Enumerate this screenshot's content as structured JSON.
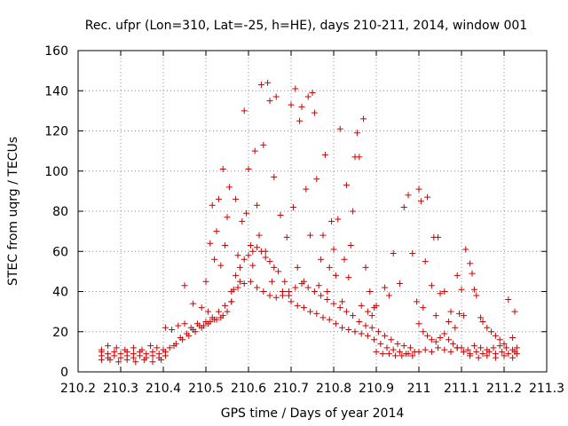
{
  "chart_data": {
    "type": "scatter",
    "title": "Rec. ufpr (Lon=310, Lat=-25, h=HE), days 210-211, 2014, window 001",
    "xlabel": "GPS time / Days of year 2014",
    "ylabel": "STEC from uqrg / TECUs",
    "xlim": [
      210.2,
      211.3
    ],
    "ylim": [
      0,
      160
    ],
    "xticks": [
      210.2,
      210.3,
      210.4,
      210.5,
      210.6,
      210.7,
      210.8,
      210.9,
      211,
      211.1,
      211.2,
      211.3
    ],
    "xtick_labels": [
      "210.2",
      "210.3",
      "210.4",
      "210.5",
      "210.6",
      "210.7",
      "210.8",
      "210.9",
      "211",
      "211.1",
      "211.2",
      "211.3"
    ],
    "yticks": [
      0,
      20,
      40,
      60,
      80,
      100,
      120,
      140,
      160
    ],
    "ytick_labels": [
      "0",
      "20",
      "40",
      "60",
      "80",
      "100",
      "120",
      "140",
      "160"
    ],
    "marker": "+",
    "color": "#cc0000",
    "grid": true,
    "series": [
      {
        "name": "STEC",
        "points": [
          [
            210.255,
            10
          ],
          [
            210.27,
            9
          ],
          [
            210.285,
            10
          ],
          [
            210.3,
            9
          ],
          [
            210.315,
            10
          ],
          [
            210.33,
            9
          ],
          [
            210.345,
            10
          ],
          [
            210.36,
            9
          ],
          [
            210.375,
            10
          ],
          [
            210.39,
            9
          ],
          [
            210.405,
            10
          ],
          [
            210.255,
            8
          ],
          [
            210.27,
            7
          ],
          [
            210.285,
            8
          ],
          [
            210.3,
            7
          ],
          [
            210.315,
            8
          ],
          [
            210.33,
            7
          ],
          [
            210.345,
            8
          ],
          [
            210.36,
            7
          ],
          [
            210.375,
            8
          ],
          [
            210.39,
            7
          ],
          [
            210.405,
            8
          ],
          [
            210.255,
            11
          ],
          [
            210.27,
            13
          ],
          [
            210.29,
            12
          ],
          [
            210.31,
            11
          ],
          [
            210.33,
            12
          ],
          [
            210.35,
            11
          ],
          [
            210.37,
            13
          ],
          [
            210.385,
            12
          ],
          [
            210.4,
            11
          ],
          [
            210.255,
            6
          ],
          [
            210.275,
            6
          ],
          [
            210.295,
            5
          ],
          [
            210.315,
            6
          ],
          [
            210.335,
            5
          ],
          [
            210.355,
            6
          ],
          [
            210.375,
            5
          ],
          [
            210.395,
            6
          ],
          [
            210.405,
            22
          ],
          [
            210.42,
            21
          ],
          [
            210.435,
            23
          ],
          [
            210.45,
            24
          ],
          [
            210.465,
            22
          ],
          [
            210.48,
            24
          ],
          [
            210.495,
            23
          ],
          [
            210.51,
            25
          ],
          [
            210.525,
            26
          ],
          [
            210.54,
            28
          ],
          [
            210.415,
            12
          ],
          [
            210.43,
            14
          ],
          [
            210.445,
            16
          ],
          [
            210.46,
            18
          ],
          [
            210.475,
            20
          ],
          [
            210.49,
            22
          ],
          [
            210.505,
            24
          ],
          [
            210.52,
            26
          ],
          [
            210.535,
            27
          ],
          [
            210.55,
            30
          ],
          [
            210.425,
            13
          ],
          [
            210.44,
            17
          ],
          [
            210.455,
            19
          ],
          [
            210.47,
            21
          ],
          [
            210.485,
            23
          ],
          [
            210.5,
            25
          ],
          [
            210.515,
            27
          ],
          [
            210.53,
            30
          ],
          [
            210.545,
            33
          ],
          [
            210.56,
            35
          ],
          [
            210.45,
            43
          ],
          [
            210.47,
            34
          ],
          [
            210.49,
            32
          ],
          [
            210.505,
            30
          ],
          [
            210.5,
            45
          ],
          [
            210.51,
            64
          ],
          [
            210.515,
            83
          ],
          [
            210.52,
            56
          ],
          [
            210.525,
            70
          ],
          [
            210.53,
            86
          ],
          [
            210.535,
            53
          ],
          [
            210.54,
            101
          ],
          [
            210.545,
            63
          ],
          [
            210.55,
            77
          ],
          [
            210.555,
            92
          ],
          [
            210.56,
            35
          ],
          [
            210.565,
            41
          ],
          [
            210.57,
            86
          ],
          [
            210.575,
            58
          ],
          [
            210.58,
            45
          ],
          [
            210.585,
            75
          ],
          [
            210.59,
            130
          ],
          [
            210.595,
            79
          ],
          [
            210.6,
            101
          ],
          [
            210.605,
            63
          ],
          [
            210.61,
            53
          ],
          [
            210.615,
            110
          ],
          [
            210.62,
            83
          ],
          [
            210.625,
            68
          ],
          [
            210.63,
            143
          ],
          [
            210.635,
            113
          ],
          [
            210.64,
            60
          ],
          [
            210.645,
            144
          ],
          [
            210.65,
            135
          ],
          [
            210.655,
            45
          ],
          [
            210.66,
            97
          ],
          [
            210.665,
            137
          ],
          [
            210.67,
            50
          ],
          [
            210.675,
            78
          ],
          [
            210.68,
            40
          ],
          [
            210.685,
            45
          ],
          [
            210.69,
            67
          ],
          [
            210.695,
            38
          ],
          [
            210.7,
            133
          ],
          [
            210.705,
            82
          ],
          [
            210.71,
            141
          ],
          [
            210.715,
            52
          ],
          [
            210.72,
            125
          ],
          [
            210.725,
            132
          ],
          [
            210.73,
            45
          ],
          [
            210.735,
            91
          ],
          [
            210.74,
            137
          ],
          [
            210.745,
            68
          ],
          [
            210.75,
            139
          ],
          [
            210.755,
            129
          ],
          [
            210.76,
            96
          ],
          [
            210.765,
            43
          ],
          [
            210.77,
            56
          ],
          [
            210.775,
            68
          ],
          [
            210.78,
            108
          ],
          [
            210.785,
            40
          ],
          [
            210.79,
            52
          ],
          [
            210.795,
            75
          ],
          [
            210.8,
            61
          ],
          [
            210.805,
            48
          ],
          [
            210.81,
            76
          ],
          [
            210.815,
            121
          ],
          [
            210.82,
            35
          ],
          [
            210.825,
            56
          ],
          [
            210.83,
            93
          ],
          [
            210.835,
            47
          ],
          [
            210.84,
            63
          ],
          [
            210.845,
            80
          ],
          [
            210.85,
            107
          ],
          [
            210.855,
            119
          ],
          [
            210.86,
            107
          ],
          [
            210.865,
            33
          ],
          [
            210.87,
            126
          ],
          [
            210.875,
            52
          ],
          [
            210.88,
            30
          ],
          [
            210.885,
            40
          ],
          [
            210.89,
            28
          ],
          [
            210.895,
            32
          ],
          [
            210.9,
            33
          ],
          [
            210.57,
            48
          ],
          [
            210.58,
            52
          ],
          [
            210.59,
            56
          ],
          [
            210.6,
            58
          ],
          [
            210.61,
            60
          ],
          [
            210.62,
            62
          ],
          [
            210.63,
            60
          ],
          [
            210.64,
            57
          ],
          [
            210.65,
            55
          ],
          [
            210.66,
            52
          ],
          [
            210.56,
            40
          ],
          [
            210.575,
            42
          ],
          [
            210.59,
            44
          ],
          [
            210.605,
            45
          ],
          [
            210.62,
            42
          ],
          [
            210.635,
            40
          ],
          [
            210.65,
            38
          ],
          [
            210.665,
            37
          ],
          [
            210.68,
            38
          ],
          [
            210.695,
            40
          ],
          [
            210.71,
            42
          ],
          [
            210.725,
            44
          ],
          [
            210.74,
            42
          ],
          [
            210.755,
            40
          ],
          [
            210.77,
            38
          ],
          [
            210.785,
            36
          ],
          [
            210.8,
            34
          ],
          [
            210.815,
            32
          ],
          [
            210.83,
            30
          ],
          [
            210.845,
            28
          ],
          [
            210.7,
            35
          ],
          [
            210.715,
            33
          ],
          [
            210.73,
            32
          ],
          [
            210.745,
            30
          ],
          [
            210.76,
            29
          ],
          [
            210.775,
            27
          ],
          [
            210.79,
            26
          ],
          [
            210.805,
            24
          ],
          [
            210.82,
            22
          ],
          [
            210.835,
            21
          ],
          [
            210.85,
            20
          ],
          [
            210.865,
            19
          ],
          [
            210.88,
            18
          ],
          [
            210.895,
            16
          ],
          [
            210.91,
            14
          ],
          [
            210.925,
            12
          ],
          [
            210.94,
            11
          ],
          [
            210.955,
            10
          ],
          [
            210.97,
            9
          ],
          [
            210.985,
            8
          ],
          [
            210.86,
            25
          ],
          [
            210.875,
            23
          ],
          [
            210.89,
            22
          ],
          [
            210.905,
            20
          ],
          [
            210.92,
            18
          ],
          [
            210.935,
            16
          ],
          [
            210.95,
            14
          ],
          [
            210.965,
            13
          ],
          [
            210.98,
            12
          ],
          [
            210.9,
            10
          ],
          [
            210.915,
            9
          ],
          [
            210.93,
            9
          ],
          [
            210.945,
            8
          ],
          [
            210.96,
            8
          ],
          [
            210.975,
            9
          ],
          [
            210.99,
            10
          ],
          [
            210.92,
            42
          ],
          [
            210.93,
            38
          ],
          [
            210.94,
            59
          ],
          [
            210.955,
            44
          ],
          [
            210.965,
            82
          ],
          [
            210.975,
            88
          ],
          [
            210.985,
            59
          ],
          [
            210.995,
            35
          ],
          [
            211.0,
            91
          ],
          [
            211.005,
            85
          ],
          [
            211.01,
            32
          ],
          [
            211.015,
            55
          ],
          [
            211.02,
            87
          ],
          [
            211.03,
            43
          ],
          [
            211.035,
            67
          ],
          [
            211.04,
            28
          ],
          [
            211.045,
            67
          ],
          [
            211.05,
            39
          ],
          [
            211.06,
            40
          ],
          [
            211.07,
            25
          ],
          [
            211.075,
            30
          ],
          [
            211.085,
            22
          ],
          [
            211.09,
            48
          ],
          [
            211.095,
            29
          ],
          [
            211.1,
            41
          ],
          [
            211.105,
            28
          ],
          [
            211.11,
            61
          ],
          [
            211.12,
            54
          ],
          [
            211.125,
            49
          ],
          [
            211.13,
            41
          ],
          [
            211.135,
            38
          ],
          [
            211.145,
            27
          ],
          [
            211.15,
            25
          ],
          [
            211.16,
            22
          ],
          [
            211.17,
            20
          ],
          [
            211.18,
            18
          ],
          [
            211.19,
            16
          ],
          [
            211.2,
            14
          ],
          [
            211.21,
            36
          ],
          [
            211.22,
            17
          ],
          [
            211.225,
            30
          ],
          [
            211.0,
            24
          ],
          [
            211.01,
            20
          ],
          [
            211.02,
            18
          ],
          [
            211.03,
            16
          ],
          [
            211.04,
            15
          ],
          [
            211.05,
            17
          ],
          [
            211.06,
            19
          ],
          [
            211.07,
            16
          ],
          [
            211.08,
            14
          ],
          [
            211.09,
            12
          ],
          [
            211.0,
            10
          ],
          [
            211.015,
            11
          ],
          [
            211.03,
            10
          ],
          [
            211.045,
            12
          ],
          [
            211.06,
            11
          ],
          [
            211.075,
            10
          ],
          [
            211.09,
            12
          ],
          [
            211.105,
            10
          ],
          [
            211.12,
            9
          ],
          [
            211.135,
            10
          ],
          [
            211.15,
            9
          ],
          [
            211.165,
            10
          ],
          [
            211.18,
            9
          ],
          [
            211.195,
            10
          ],
          [
            211.21,
            9
          ],
          [
            211.225,
            10
          ],
          [
            211.1,
            12
          ],
          [
            211.115,
            11
          ],
          [
            211.13,
            13
          ],
          [
            211.145,
            12
          ],
          [
            211.16,
            11
          ],
          [
            211.175,
            12
          ],
          [
            211.19,
            13
          ],
          [
            211.205,
            12
          ],
          [
            211.22,
            11
          ],
          [
            211.23,
            12
          ],
          [
            211.12,
            8
          ],
          [
            211.14,
            7
          ],
          [
            211.16,
            8
          ],
          [
            211.18,
            7
          ],
          [
            211.2,
            8
          ],
          [
            211.22,
            7
          ],
          [
            211.23,
            9
          ]
        ]
      }
    ]
  }
}
